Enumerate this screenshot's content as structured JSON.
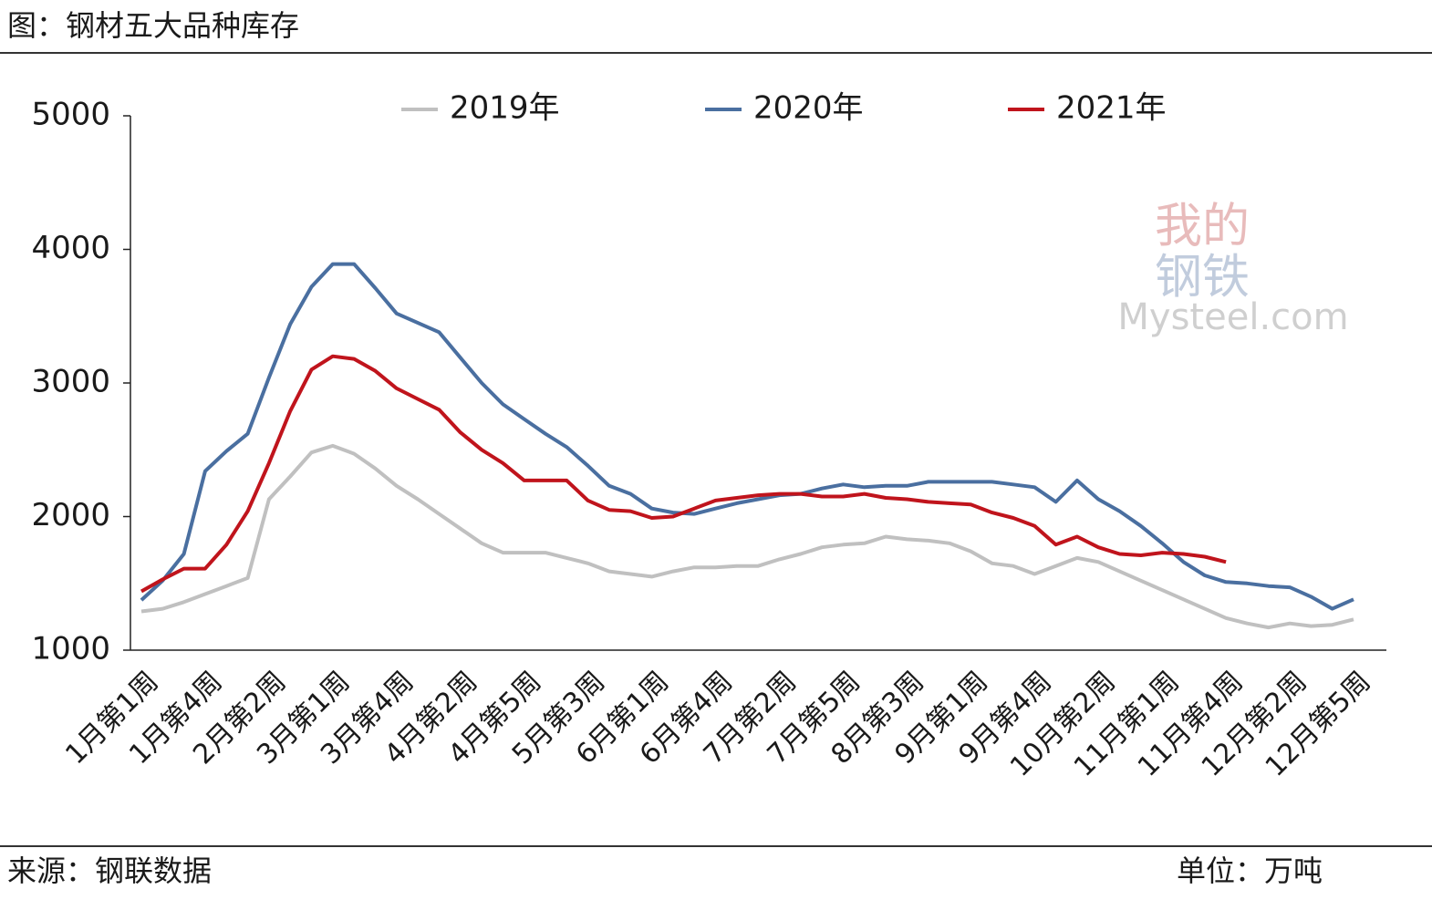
{
  "header": {
    "title": "图：钢材五大品种库存"
  },
  "footer": {
    "source": "来源：钢联数据",
    "unit": "单位：万吨"
  },
  "watermark": {
    "line1": "我的",
    "line2": "钢铁",
    "brand": "Mysteel.com"
  },
  "chart_data": {
    "type": "line",
    "categories": [
      "1月第1周",
      null,
      null,
      "1月第4周",
      null,
      null,
      "2月第2周",
      null,
      null,
      "3月第1周",
      null,
      null,
      "3月第4周",
      null,
      null,
      "4月第2周",
      null,
      null,
      "4月第5周",
      null,
      null,
      "5月第3周",
      null,
      null,
      "6月第1周",
      null,
      null,
      "6月第4周",
      null,
      null,
      "7月第2周",
      null,
      null,
      "7月第5周",
      null,
      null,
      "8月第3周",
      null,
      null,
      "9月第1周",
      null,
      null,
      "9月第4周",
      null,
      null,
      "10月第2周",
      null,
      null,
      "11月第1周",
      null,
      null,
      "11月第4周",
      null,
      null,
      "12月第2周",
      null,
      null,
      "12月第5周"
    ],
    "series": [
      {
        "name": "2019年",
        "color": "#c0c0c0",
        "values": [
          1290,
          1310,
          1360,
          1420,
          1480,
          1540,
          2130,
          2300,
          2480,
          2530,
          2470,
          2360,
          2230,
          2130,
          2020,
          1910,
          1800,
          1730,
          1730,
          1730,
          1690,
          1650,
          1590,
          1570,
          1550,
          1590,
          1620,
          1620,
          1630,
          1630,
          1680,
          1720,
          1770,
          1790,
          1800,
          1850,
          1830,
          1820,
          1800,
          1740,
          1650,
          1630,
          1570,
          1630,
          1690,
          1660,
          1590,
          1520,
          1450,
          1380,
          1310,
          1240,
          1200,
          1170,
          1200,
          1180,
          1190,
          1230
        ]
      },
      {
        "name": "2020年",
        "color": "#4a6fa0",
        "values": [
          1375,
          1520,
          1720,
          2340,
          2490,
          2620,
          3040,
          3440,
          3720,
          3890,
          3890,
          3710,
          3520,
          3450,
          3380,
          3190,
          3000,
          2840,
          2730,
          2620,
          2520,
          2380,
          2230,
          2170,
          2060,
          2030,
          2020,
          2060,
          2100,
          2130,
          2160,
          2170,
          2210,
          2240,
          2220,
          2230,
          2230,
          2260,
          2260,
          2260,
          2260,
          2240,
          2220,
          2110,
          2270,
          2130,
          2040,
          1930,
          1800,
          1660,
          1560,
          1510,
          1500,
          1480,
          1470,
          1400,
          1310,
          1380
        ]
      },
      {
        "name": "2021年",
        "color": "#c0141c",
        "values": [
          1440,
          1530,
          1610,
          1610,
          1790,
          2040,
          2400,
          2790,
          3100,
          3200,
          3180,
          3090,
          2960,
          2880,
          2800,
          2630,
          2500,
          2400,
          2270,
          2270,
          2270,
          2120,
          2050,
          2040,
          1990,
          2000,
          2060,
          2120,
          2140,
          2160,
          2170,
          2170,
          2150,
          2150,
          2170,
          2140,
          2130,
          2110,
          2100,
          2090,
          2030,
          1990,
          1930,
          1790,
          1850,
          1770,
          1720,
          1710,
          1730,
          1720,
          1700,
          1660,
          null,
          null,
          null,
          null,
          null,
          null
        ]
      }
    ],
    "ylim": [
      1000,
      5000
    ],
    "yticks": [
      1000,
      2000,
      3000,
      4000,
      5000
    ],
    "grid": false,
    "legend": "top"
  }
}
